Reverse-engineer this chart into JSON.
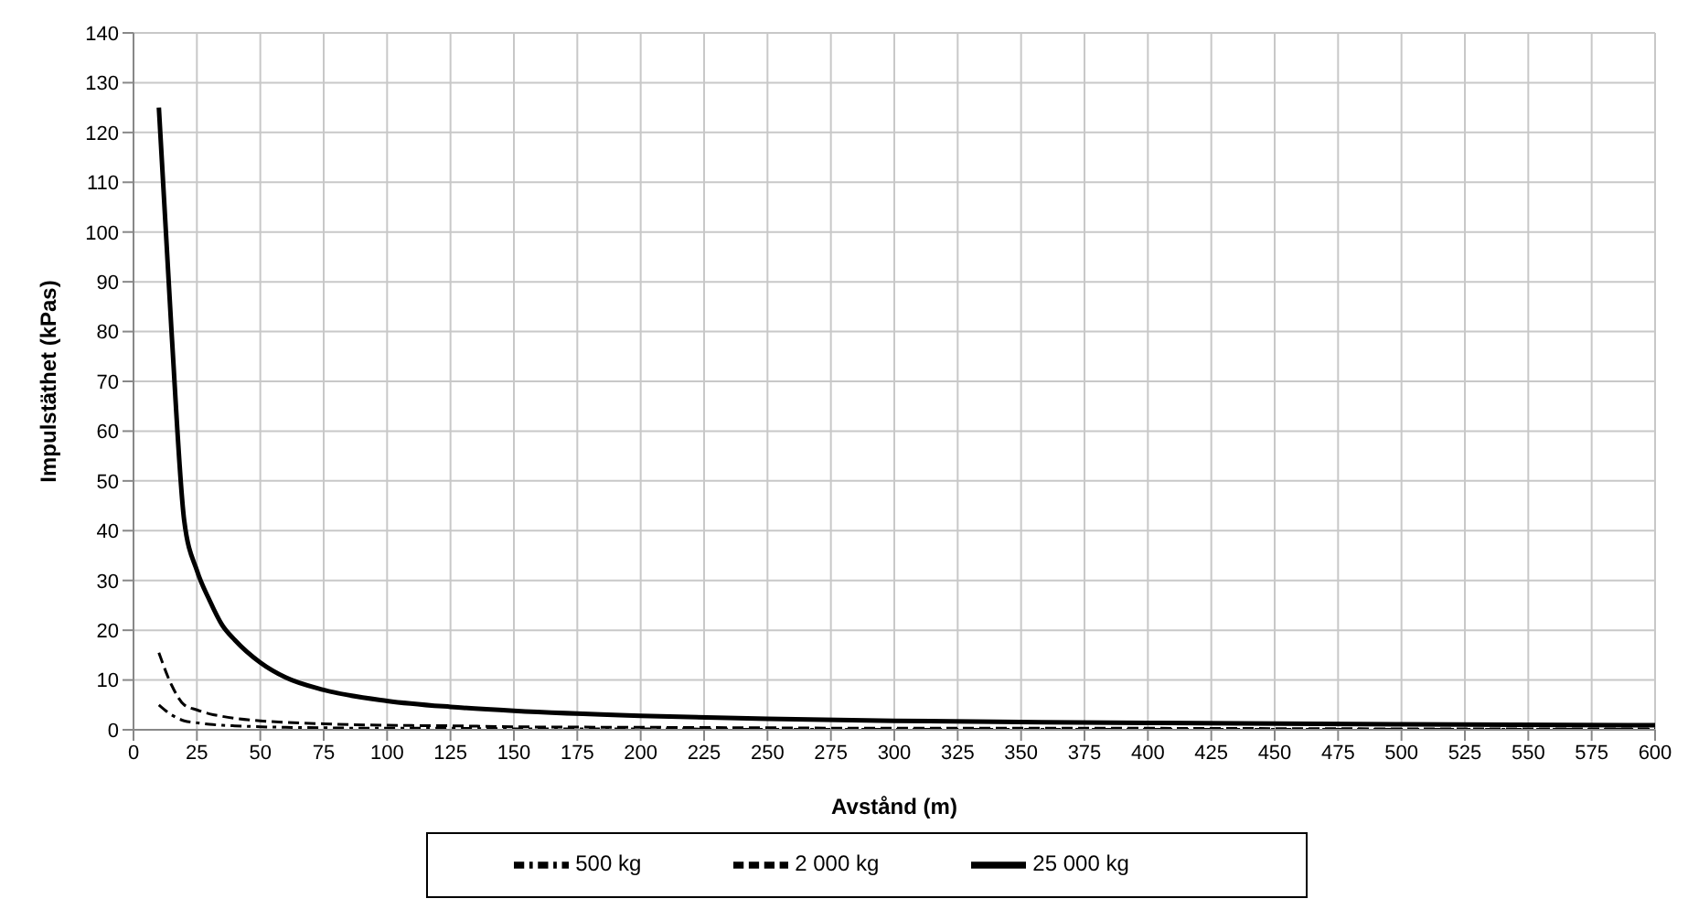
{
  "chart_data": {
    "type": "line",
    "xlabel": "Avstånd (m)",
    "ylabel": "Impulstäthet (kPas)",
    "xlim": [
      0,
      600
    ],
    "xticks": [
      0,
      25,
      50,
      75,
      100,
      125,
      150,
      175,
      200,
      225,
      250,
      275,
      300,
      325,
      350,
      375,
      400,
      425,
      450,
      475,
      500,
      525,
      550,
      575,
      600
    ],
    "ylim": [
      0,
      140
    ],
    "yticks": [
      0,
      10,
      20,
      30,
      40,
      50,
      60,
      70,
      80,
      90,
      100,
      110,
      120,
      130,
      140
    ],
    "grid": true,
    "legend": "bottom",
    "marker": "none",
    "x": [
      10,
      15,
      20,
      25,
      30,
      35,
      40,
      50,
      60,
      75,
      100,
      125,
      150,
      200,
      250,
      300,
      400,
      500,
      600
    ],
    "series": [
      {
        "name": "500 kg",
        "color": "#000000",
        "line_style": "dashdot",
        "values": [
          5,
          3,
          1.8,
          1.4,
          1.1,
          0.9,
          0.8,
          0.6,
          0.5,
          0.4,
          0.3,
          0.3,
          0.2,
          0.2,
          0.1,
          0.1,
          0.1,
          0.1,
          0.1
        ]
      },
      {
        "name": "2 000 kg",
        "color": "#000000",
        "line_style": "dashed",
        "values": [
          15.5,
          9,
          5,
          4,
          3.2,
          2.7,
          2.3,
          1.8,
          1.5,
          1.2,
          0.9,
          0.8,
          0.6,
          0.5,
          0.4,
          0.3,
          0.3,
          0.2,
          0.2
        ]
      },
      {
        "name": "25 000 kg",
        "color": "#000000",
        "line_style": "solid",
        "values": [
          125,
          80,
          42,
          32,
          26,
          21,
          18,
          13.5,
          10.5,
          8,
          5.8,
          4.6,
          3.8,
          2.8,
          2.2,
          1.8,
          1.4,
          1.1,
          0.9
        ]
      }
    ]
  }
}
